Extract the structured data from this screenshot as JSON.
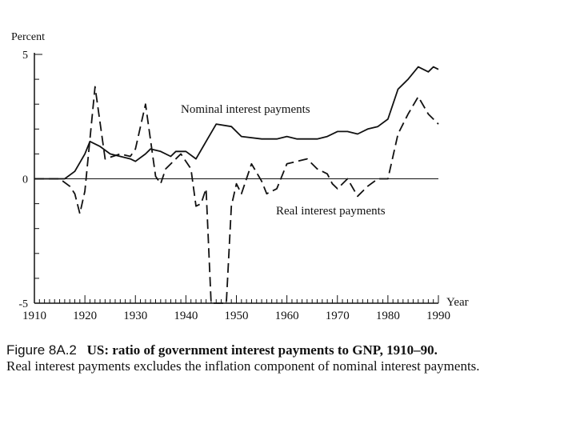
{
  "chart_data": {
    "type": "line",
    "ylabel": "Percent",
    "xlabel": "Year",
    "xlim": [
      1910,
      1990
    ],
    "ylim": [
      -5,
      5
    ],
    "x_ticks": [
      "1910",
      "1920",
      "1930",
      "1940",
      "1950",
      "1960",
      "1970",
      "1980",
      "1990"
    ],
    "y_ticks": [
      "5",
      "0",
      "-5"
    ],
    "zero_line": true,
    "series": [
      {
        "name": "Nominal interest payments",
        "style": "solid",
        "color": "#111111",
        "points": [
          [
            1910,
            0.0
          ],
          [
            1916,
            0.0
          ],
          [
            1918,
            0.3
          ],
          [
            1920,
            1.0
          ],
          [
            1921,
            1.5
          ],
          [
            1923,
            1.3
          ],
          [
            1925,
            1.0
          ],
          [
            1927,
            0.9
          ],
          [
            1929,
            0.8
          ],
          [
            1930,
            0.7
          ],
          [
            1932,
            1.0
          ],
          [
            1933,
            1.2
          ],
          [
            1935,
            1.1
          ],
          [
            1937,
            0.9
          ],
          [
            1938,
            1.1
          ],
          [
            1940,
            1.1
          ],
          [
            1942,
            0.8
          ],
          [
            1944,
            1.5
          ],
          [
            1946,
            2.2
          ],
          [
            1949,
            2.1
          ],
          [
            1951,
            1.7
          ],
          [
            1955,
            1.6
          ],
          [
            1958,
            1.6
          ],
          [
            1960,
            1.7
          ],
          [
            1962,
            1.6
          ],
          [
            1966,
            1.6
          ],
          [
            1968,
            1.7
          ],
          [
            1970,
            1.9
          ],
          [
            1972,
            1.9
          ],
          [
            1974,
            1.8
          ],
          [
            1976,
            2.0
          ],
          [
            1978,
            2.1
          ],
          [
            1980,
            2.4
          ],
          [
            1982,
            3.6
          ],
          [
            1984,
            4.0
          ],
          [
            1986,
            4.5
          ],
          [
            1988,
            4.3
          ],
          [
            1989,
            4.5
          ],
          [
            1990,
            4.4
          ]
        ]
      },
      {
        "name": "Real interest payments",
        "style": "dashed",
        "color": "#111111",
        "points": [
          [
            1910,
            0.0
          ],
          [
            1915,
            0.0
          ],
          [
            1917,
            -0.3
          ],
          [
            1918,
            -0.6
          ],
          [
            1919,
            -1.4
          ],
          [
            1920,
            -0.5
          ],
          [
            1922,
            3.7
          ],
          [
            1924,
            0.8
          ],
          [
            1927,
            1.0
          ],
          [
            1929,
            0.9
          ],
          [
            1930,
            1.2
          ],
          [
            1932,
            3.0
          ],
          [
            1934,
            0.1
          ],
          [
            1935,
            -0.2
          ],
          [
            1936,
            0.4
          ],
          [
            1939,
            1.0
          ],
          [
            1941,
            0.4
          ],
          [
            1942,
            -1.1
          ],
          [
            1943,
            -1.0
          ],
          [
            1944,
            -0.4
          ],
          [
            1945,
            -5.0
          ],
          [
            1948,
            -5.0
          ],
          [
            1949,
            -1.1
          ],
          [
            1950,
            -0.2
          ],
          [
            1951,
            -0.6
          ],
          [
            1953,
            0.6
          ],
          [
            1955,
            -0.1
          ],
          [
            1956,
            -0.6
          ],
          [
            1958,
            -0.4
          ],
          [
            1960,
            0.6
          ],
          [
            1964,
            0.8
          ],
          [
            1966,
            0.4
          ],
          [
            1968,
            0.2
          ],
          [
            1969,
            -0.2
          ],
          [
            1970,
            -0.4
          ],
          [
            1972,
            0.0
          ],
          [
            1974,
            -0.7
          ],
          [
            1976,
            -0.3
          ],
          [
            1978,
            0.0
          ],
          [
            1980,
            0.0
          ],
          [
            1982,
            1.8
          ],
          [
            1984,
            2.6
          ],
          [
            1986,
            3.3
          ],
          [
            1988,
            2.6
          ],
          [
            1990,
            2.2
          ]
        ]
      }
    ],
    "annotations": [
      {
        "text": "Nominal interest payments",
        "series": 0
      },
      {
        "text": "Real interest payments",
        "series": 1
      }
    ]
  },
  "caption": {
    "label": "Figure 8A.2",
    "title": "US: ratio of government interest payments to GNP, 1910–90.",
    "body": "Real interest payments excludes the inflation component of nominal interest payments."
  }
}
